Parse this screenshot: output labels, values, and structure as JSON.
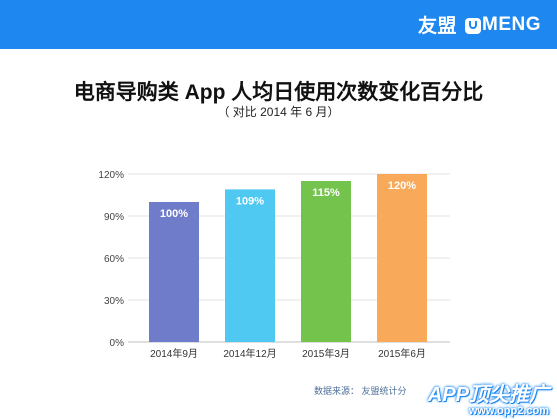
{
  "header": {
    "logo_cn": "友盟",
    "logo_en": "MENG",
    "brand_color": "#1e87f0"
  },
  "chart_data": {
    "type": "bar",
    "title": "电商导购类 App 人均日使用次数变化百分比",
    "subtitle": "（ 对比 2014 年 6 月）",
    "categories": [
      "2014年9月",
      "2014年12月",
      "2015年3月",
      "2015年6月"
    ],
    "values": [
      100,
      109,
      115,
      120
    ],
    "data_labels": [
      "100%",
      "109%",
      "115%",
      "120%"
    ],
    "bar_colors": [
      "#6f7cca",
      "#4fc8f2",
      "#74c34c",
      "#f8a95a"
    ],
    "y_ticks": [
      "0%",
      "30%",
      "60%",
      "90%",
      "120%"
    ],
    "y_tick_values": [
      0,
      30,
      60,
      90,
      120
    ],
    "ylim": [
      0,
      120
    ],
    "grid": true,
    "legend": "none"
  },
  "footer": {
    "source": "数据来源：  友盟统计分"
  },
  "watermark": {
    "title": "APP顶尖推广",
    "url": "www.opp2.com"
  }
}
